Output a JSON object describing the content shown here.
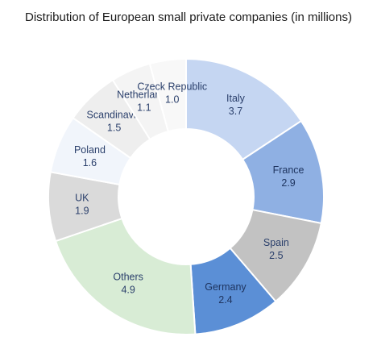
{
  "chart_data": {
    "type": "pie",
    "title": "Distribution of European small private companies (in millions)",
    "donut": true,
    "slices": [
      {
        "label": "Italy",
        "value": 3.7,
        "display": "3.7",
        "color": "#c5d6f2",
        "text_color": "#2a3f6b"
      },
      {
        "label": "France",
        "value": 2.9,
        "display": "2.9",
        "color": "#8fb0e3",
        "text_color": "#1f3560"
      },
      {
        "label": "Spain",
        "value": 2.5,
        "display": "2.5",
        "color": "#c2c2c2",
        "text_color": "#2a3f6b"
      },
      {
        "label": "Germany",
        "value": 2.4,
        "display": "2.4",
        "color": "#5b8fd6",
        "text_color": "#1f3560"
      },
      {
        "label": "Others",
        "value": 4.9,
        "display": "4.9",
        "color": "#d8ecd5",
        "text_color": "#2a3f6b"
      },
      {
        "label": "UK",
        "value": 1.9,
        "display": "1.9",
        "color": "#dadada",
        "text_color": "#2a3f6b"
      },
      {
        "label": "Poland",
        "value": 1.6,
        "display": "1.6",
        "color": "#f1f5fb",
        "text_color": "#2a3f6b"
      },
      {
        "label": "Scandinavia",
        "value": 1.5,
        "display": "1.5",
        "color": "#eeeeee",
        "text_color": "#2a3f6b"
      },
      {
        "label": "Netherlands",
        "value": 1.1,
        "display": "1.1",
        "color": "#f4f4f4",
        "text_color": "#2a3f6b"
      },
      {
        "label": "Czeck Republic",
        "value": 1.0,
        "display": "1.0",
        "color": "#f8f8f8",
        "text_color": "#2a3f6b"
      }
    ]
  }
}
